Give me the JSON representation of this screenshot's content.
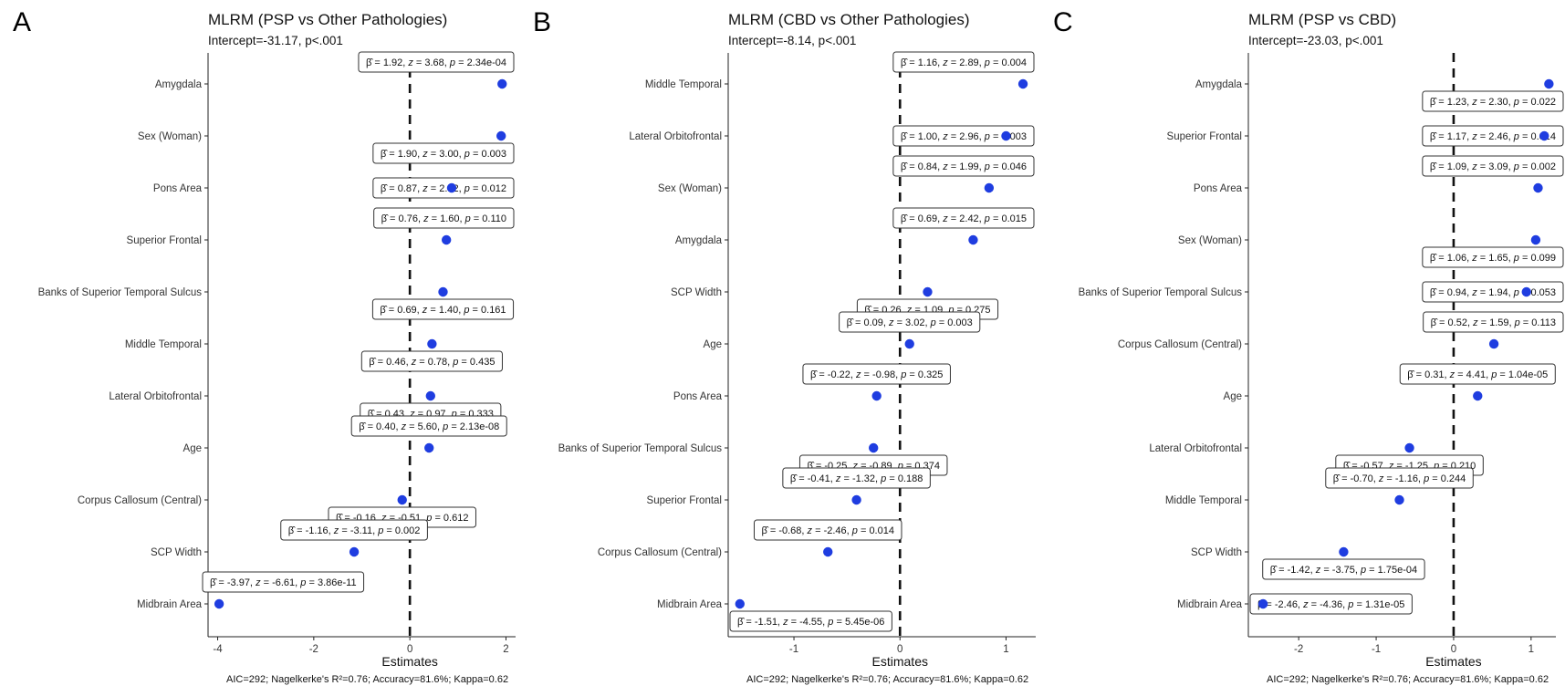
{
  "figure": {
    "panel_width": 570,
    "panel_height": 752
  },
  "chart_data": [
    {
      "type": "scatter",
      "panel_label": "A",
      "title": "MLRM (PSP vs Other Pathologies)",
      "subtitle": "Intercept=-31.17, p<.001",
      "xlabel": "Estimates",
      "footer": "AIC=292; Nagelkerke's R²=0.76; Accuracy=81.6%; Kappa=0.62",
      "xlim": [
        -4.2,
        2.2
      ],
      "xticks": [
        -4,
        -2,
        0,
        2
      ],
      "xtick_labels": [
        "-4",
        "-2",
        "0",
        "2"
      ],
      "reference_line": 0,
      "grid": false,
      "point_color": "#1f3de0",
      "points": [
        {
          "label": "Amygdala",
          "estimate": 1.92,
          "beta": "1.92",
          "z": "3.68",
          "p": "2.34e-04",
          "label_pos": "above"
        },
        {
          "label": "Sex (Woman)",
          "estimate": 1.9,
          "beta": "1.90",
          "z": "3.00",
          "p": "0.003",
          "label_pos": "below"
        },
        {
          "label": "Pons Area",
          "estimate": 0.87,
          "beta": "0.87",
          "z": "2.52",
          "p": "0.012",
          "label_pos": "onrow"
        },
        {
          "label": "Superior Frontal",
          "estimate": 0.76,
          "beta": "0.76",
          "z": "1.60",
          "p": "0.110",
          "label_pos": "above"
        },
        {
          "label": "Banks of Superior Temporal Sulcus",
          "estimate": 0.69,
          "beta": "0.69",
          "z": "1.40",
          "p": "0.161",
          "label_pos": "below"
        },
        {
          "label": "Middle Temporal",
          "estimate": 0.46,
          "beta": "0.46",
          "z": "0.78",
          "p": "0.435",
          "label_pos": "below"
        },
        {
          "label": "Lateral Orbitofrontal",
          "estimate": 0.43,
          "beta": "0.43",
          "z": "0.97",
          "p": "0.333",
          "label_pos": "below"
        },
        {
          "label": "Age",
          "estimate": 0.4,
          "beta": "0.40",
          "z": "5.60",
          "p": "2.13e-08",
          "label_pos": "above"
        },
        {
          "label": "Corpus Callosum (Central)",
          "estimate": -0.16,
          "beta": "-0.16",
          "z": "-0.51",
          "p": "0.612",
          "label_pos": "below"
        },
        {
          "label": "SCP Width",
          "estimate": -1.16,
          "beta": "-1.16",
          "z": "-3.11",
          "p": "0.002",
          "label_pos": "above"
        },
        {
          "label": "Midbrain Area",
          "estimate": -3.97,
          "beta": "-3.97",
          "z": "-6.61",
          "p": "3.86e-11",
          "label_pos": "above"
        }
      ]
    },
    {
      "type": "scatter",
      "panel_label": "B",
      "title": "MLRM (CBD vs Other Pathologies)",
      "subtitle": "Intercept=-8.14, p<.001",
      "xlabel": "Estimates",
      "footer": "AIC=292; Nagelkerke's R²=0.76; Accuracy=81.6%; Kappa=0.62",
      "xlim": [
        -1.62,
        1.28
      ],
      "xticks": [
        -1,
        0,
        1
      ],
      "xtick_labels": [
        "-1",
        "0",
        "1"
      ],
      "reference_line": 0,
      "grid": false,
      "point_color": "#1f3de0",
      "points": [
        {
          "label": "Middle Temporal",
          "estimate": 1.16,
          "beta": "1.16",
          "z": "2.89",
          "p": "0.004",
          "label_pos": "above"
        },
        {
          "label": "Lateral Orbitofrontal",
          "estimate": 1.0,
          "beta": "1.00",
          "z": "2.96",
          "p": "0.003",
          "label_pos": "onrow"
        },
        {
          "label": "Sex (Woman)",
          "estimate": 0.84,
          "beta": "0.84",
          "z": "1.99",
          "p": "0.046",
          "label_pos": "above"
        },
        {
          "label": "Amygdala",
          "estimate": 0.69,
          "beta": "0.69",
          "z": "2.42",
          "p": "0.015",
          "label_pos": "above"
        },
        {
          "label": "SCP Width",
          "estimate": 0.26,
          "beta": "0.26",
          "z": "1.09",
          "p": "0.275",
          "label_pos": "below"
        },
        {
          "label": "Age",
          "estimate": 0.09,
          "beta": "0.09",
          "z": "3.02",
          "p": "0.003",
          "label_pos": "above"
        },
        {
          "label": "Pons Area",
          "estimate": -0.22,
          "beta": "-0.22",
          "z": "-0.98",
          "p": "0.325",
          "label_pos": "above"
        },
        {
          "label": "Banks of Superior Temporal Sulcus",
          "estimate": -0.25,
          "beta": "-0.25",
          "z": "-0.89",
          "p": "0.374",
          "label_pos": "below"
        },
        {
          "label": "Superior Frontal",
          "estimate": -0.41,
          "beta": "-0.41",
          "z": "-1.32",
          "p": "0.188",
          "label_pos": "above"
        },
        {
          "label": "Corpus Callosum (Central)",
          "estimate": -0.68,
          "beta": "-0.68",
          "z": "-2.46",
          "p": "0.014",
          "label_pos": "above"
        },
        {
          "label": "Midbrain Area",
          "estimate": -1.51,
          "beta": "-1.51",
          "z": "-4.55",
          "p": "5.45e-06",
          "label_pos": "below"
        }
      ]
    },
    {
      "type": "scatter",
      "panel_label": "C",
      "title": "MLRM (PSP vs CBD)",
      "subtitle": "Intercept=-23.03, p<.001",
      "xlabel": "Estimates",
      "footer": "AIC=292; Nagelkerke's R²=0.76; Accuracy=81.6%; Kappa=0.62",
      "xlim": [
        -2.65,
        1.32
      ],
      "xticks": [
        -2,
        -1,
        0,
        1
      ],
      "xtick_labels": [
        "-2",
        "-1",
        "0",
        "1"
      ],
      "reference_line": 0,
      "grid": false,
      "point_color": "#1f3de0",
      "points": [
        {
          "label": "Amygdala",
          "estimate": 1.23,
          "beta": "1.23",
          "z": "2.30",
          "p": "0.022",
          "label_pos": "below"
        },
        {
          "label": "Superior Frontal",
          "estimate": 1.17,
          "beta": "1.17",
          "z": "2.46",
          "p": "0.014",
          "label_pos": "onrow"
        },
        {
          "label": "Pons Area",
          "estimate": 1.09,
          "beta": "1.09",
          "z": "3.09",
          "p": "0.002",
          "label_pos": "above"
        },
        {
          "label": "Sex (Woman)",
          "estimate": 1.06,
          "beta": "1.06",
          "z": "1.65",
          "p": "0.099",
          "label_pos": "below"
        },
        {
          "label": "Banks of Superior Temporal Sulcus",
          "estimate": 0.94,
          "beta": "0.94",
          "z": "1.94",
          "p": "0.053",
          "label_pos": "onrow"
        },
        {
          "label": "Corpus Callosum (Central)",
          "estimate": 0.52,
          "beta": "0.52",
          "z": "1.59",
          "p": "0.113",
          "label_pos": "above"
        },
        {
          "label": "Age",
          "estimate": 0.31,
          "beta": "0.31",
          "z": "4.41",
          "p": "1.04e-05",
          "label_pos": "above"
        },
        {
          "label": "Lateral Orbitofrontal",
          "estimate": -0.57,
          "beta": "-0.57",
          "z": "-1.25",
          "p": "0.210",
          "label_pos": "below"
        },
        {
          "label": "Middle Temporal",
          "estimate": -0.7,
          "beta": "-0.70",
          "z": "-1.16",
          "p": "0.244",
          "label_pos": "above"
        },
        {
          "label": "SCP Width",
          "estimate": -1.42,
          "beta": "-1.42",
          "z": "-3.75",
          "p": "1.75e-04",
          "label_pos": "below"
        },
        {
          "label": "Midbrain Area",
          "estimate": -2.46,
          "beta": "-2.46",
          "z": "-4.36",
          "p": "1.31e-05",
          "label_pos": "onrow"
        }
      ]
    }
  ]
}
